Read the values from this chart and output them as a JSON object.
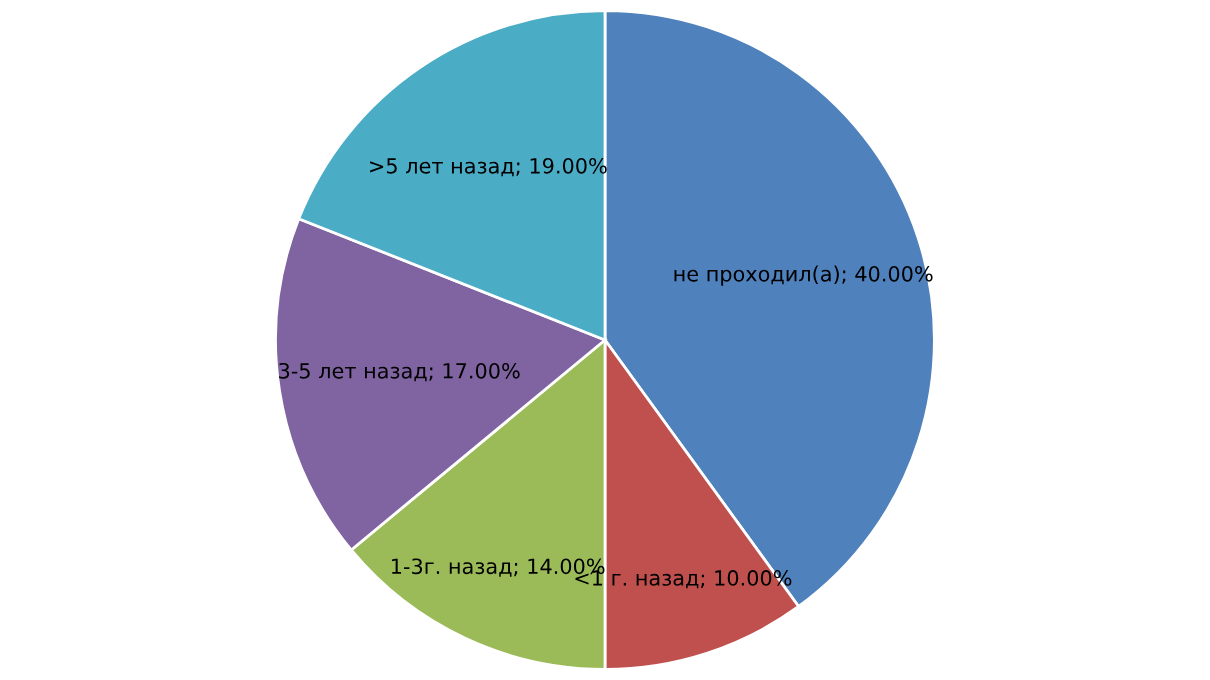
{
  "chart_data": {
    "type": "pie",
    "categories": [
      "не проходил(а)",
      "<1 г. назад",
      "1-3г. назад",
      "3-5 лет назад",
      ">5 лет назад"
    ],
    "values": [
      40,
      10,
      14,
      17,
      19
    ],
    "value_labels": [
      "40.00%",
      "10.00%",
      "14.00%",
      "17.00%",
      "19.00%"
    ],
    "colors": [
      "#4f81bd",
      "#c0504d",
      "#9bbb59",
      "#8064a2",
      "#4bacc6"
    ],
    "legend": false
  }
}
